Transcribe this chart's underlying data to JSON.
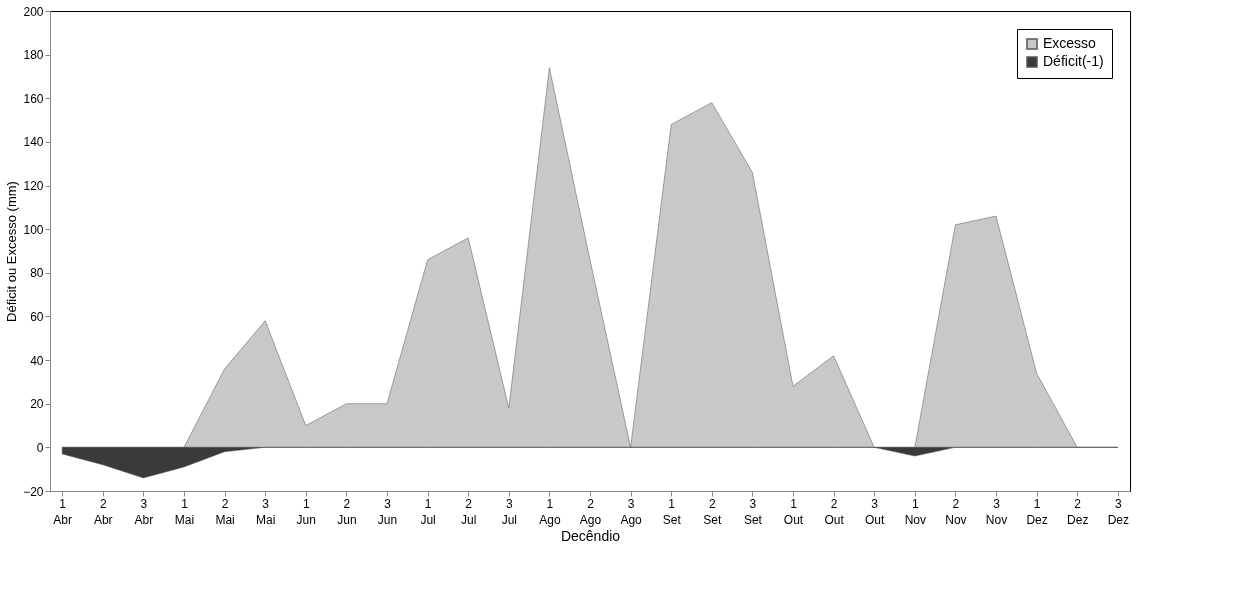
{
  "chart_data": {
    "type": "area",
    "xlabel": "Decêndio",
    "ylabel": "Déficit ou Excesso (mm)",
    "categories": [
      "1 Abr",
      "2 Abr",
      "3 Abr",
      "1 Mai",
      "2 Mai",
      "3 Mai",
      "1 Jun",
      "2 Jun",
      "3 Jun",
      "1 Jul",
      "2 Jul",
      "3 Jul",
      "1 Ago",
      "2 Ago",
      "3 Ago",
      "1 Set",
      "2 Set",
      "3 Set",
      "1 Out",
      "2 Out",
      "3 Out",
      "1 Nov",
      "2 Nov",
      "3 Nov",
      "1 Dez",
      "2 Dez",
      "3 Dez"
    ],
    "series": [
      {
        "name": "Excesso",
        "color": "#c8c8c8",
        "values": [
          0,
          0,
          0,
          0,
          36,
          58,
          10,
          20,
          20,
          86,
          96,
          18,
          174,
          86,
          0,
          148,
          158,
          126,
          28,
          42,
          0,
          0,
          102,
          106,
          34,
          0,
          0
        ]
      },
      {
        "name": "Déficit(-1)",
        "color": "#3a3a3a",
        "values": [
          -3,
          -8,
          -14,
          -9,
          -2,
          0,
          0,
          0,
          0,
          0,
          0,
          0,
          0,
          0,
          0,
          0,
          0,
          0,
          0,
          0,
          0,
          -4,
          0,
          0,
          0,
          0,
          0
        ]
      }
    ],
    "ylim": [
      -20,
      200
    ],
    "yticks": [
      -20,
      0,
      20,
      40,
      60,
      80,
      100,
      120,
      140,
      160,
      180,
      200
    ],
    "grid": false,
    "legend": "top right"
  }
}
